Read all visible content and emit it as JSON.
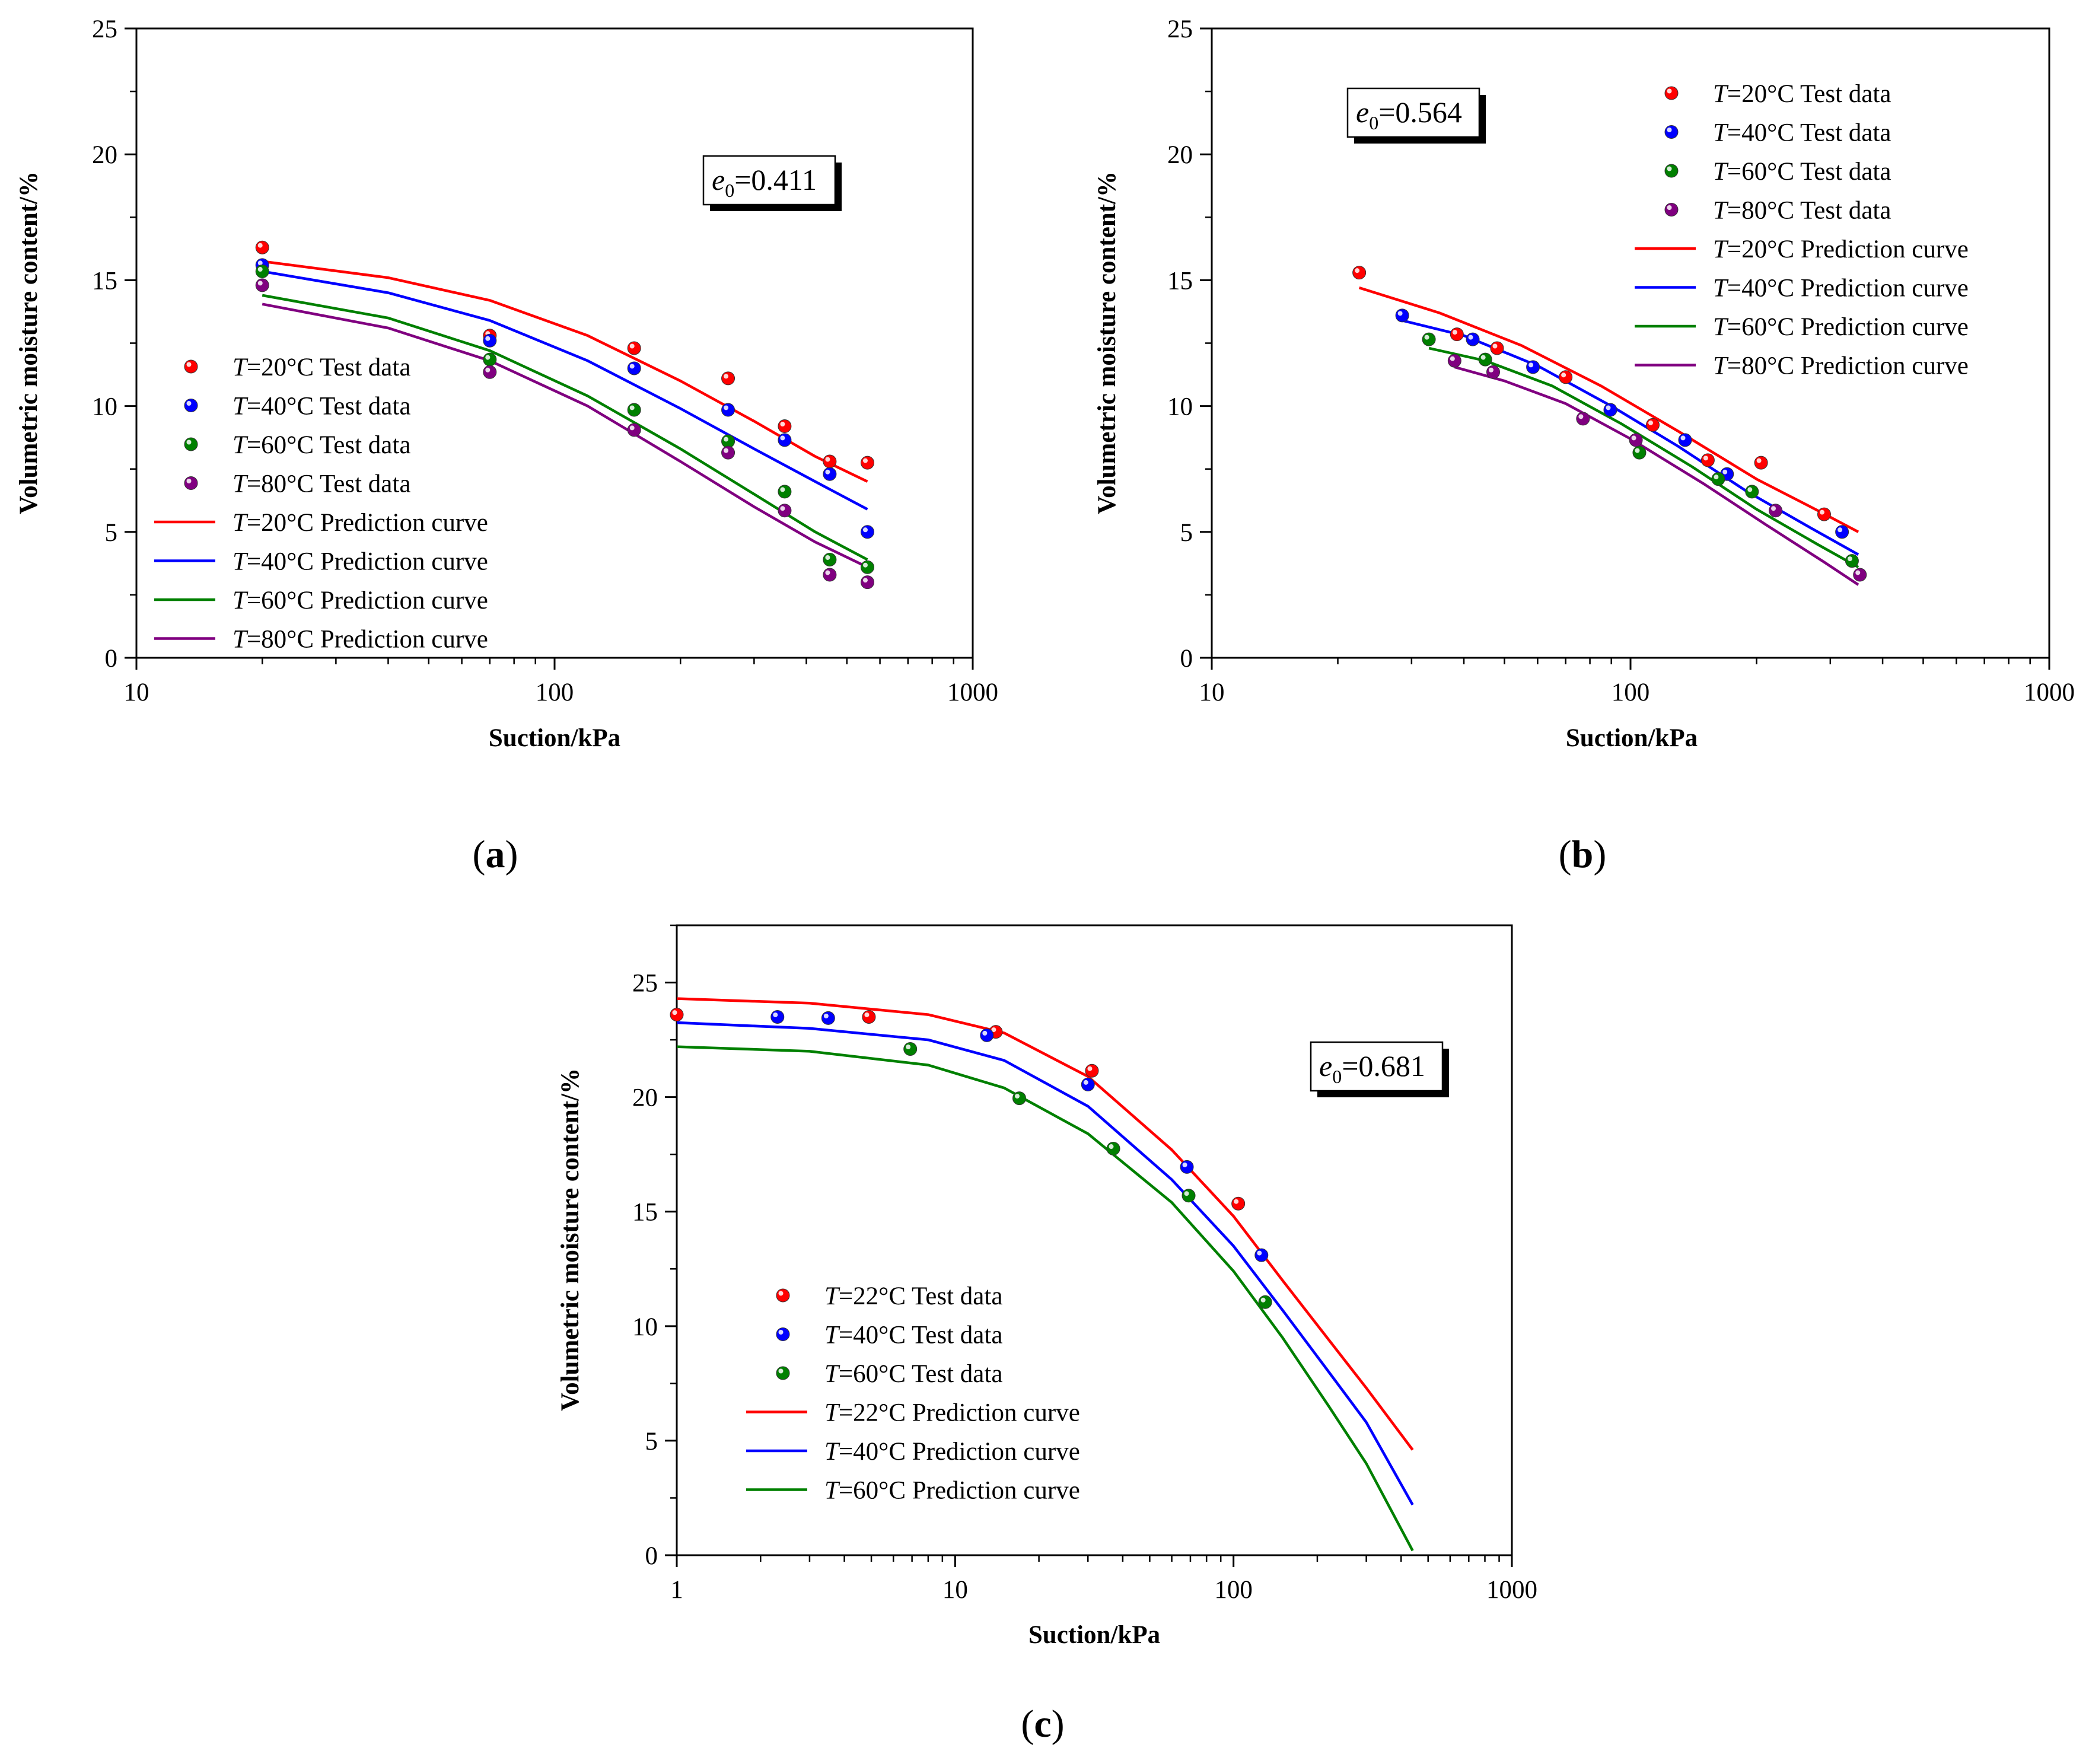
{
  "figure": {
    "panels": [
      {
        "letter": "a",
        "open": "(",
        "close": ")"
      },
      {
        "letter": "b",
        "open": "(",
        "close": ")"
      },
      {
        "letter": "c",
        "open": "(",
        "close": ")"
      }
    ],
    "legend_var": "T",
    "annotation_var": "e",
    "annotation_sub": "0",
    "annotation_eq": "="
  },
  "chart_data": [
    {
      "type": "scatter",
      "panel": "a",
      "x_scale": "log",
      "xlim": [
        10,
        1000
      ],
      "ylim": [
        0,
        25
      ],
      "xlabel": "Suction/kPa",
      "ylabel": "Volumetric moisture content/%",
      "x_ticks": [
        "10",
        "100",
        "1000"
      ],
      "y_ticks": [
        "0",
        "5",
        "10",
        "15",
        "20",
        "25"
      ],
      "annotation_value": "0.411",
      "annotation_position": "top-right",
      "legend_position": "middle-left",
      "series": [
        {
          "name": "=20°C Test data",
          "kind": "points",
          "color": "#ff0000",
          "x": [
            20,
            70,
            155,
            260,
            355,
            455,
            560
          ],
          "y": [
            16.3,
            12.8,
            12.3,
            11.1,
            9.2,
            7.8,
            7.75
          ]
        },
        {
          "name": "=40°C Test data",
          "kind": "points",
          "color": "#0000ff",
          "x": [
            20,
            70,
            155,
            260,
            355,
            455,
            560
          ],
          "y": [
            15.6,
            12.6,
            11.5,
            9.85,
            8.65,
            7.3,
            5.0
          ]
        },
        {
          "name": "=60°C Test data",
          "kind": "points",
          "color": "#008000",
          "x": [
            20,
            70,
            155,
            260,
            355,
            455,
            560
          ],
          "y": [
            15.35,
            11.85,
            9.85,
            8.6,
            6.6,
            3.9,
            3.6
          ]
        },
        {
          "name": "=80°C Test data",
          "kind": "points",
          "color": "#800080",
          "x": [
            20,
            70,
            155,
            260,
            355,
            455,
            560
          ],
          "y": [
            14.8,
            11.35,
            9.05,
            8.15,
            5.85,
            3.3,
            3.0
          ]
        },
        {
          "name": "=20°C Prediction curve",
          "kind": "line",
          "color": "#ff0000",
          "x": [
            20,
            40,
            70,
            120,
            200,
            300,
            420,
            560
          ],
          "y": [
            15.75,
            15.1,
            14.2,
            12.8,
            11.0,
            9.4,
            8.0,
            7.0
          ]
        },
        {
          "name": "=40°C Prediction curve",
          "kind": "line",
          "color": "#0000ff",
          "x": [
            20,
            40,
            70,
            120,
            200,
            300,
            420,
            560
          ],
          "y": [
            15.35,
            14.5,
            13.4,
            11.8,
            9.9,
            8.3,
            7.0,
            5.9
          ]
        },
        {
          "name": "=60°C Prediction curve",
          "kind": "line",
          "color": "#008000",
          "x": [
            20,
            40,
            70,
            120,
            200,
            300,
            420,
            560
          ],
          "y": [
            14.4,
            13.5,
            12.2,
            10.4,
            8.3,
            6.5,
            5.0,
            3.9
          ]
        },
        {
          "name": "=80°C Prediction curve",
          "kind": "line",
          "color": "#800080",
          "x": [
            20,
            40,
            70,
            120,
            200,
            300,
            420,
            560
          ],
          "y": [
            14.05,
            13.1,
            11.8,
            10.0,
            7.8,
            6.0,
            4.6,
            3.6
          ]
        }
      ]
    },
    {
      "type": "scatter",
      "panel": "b",
      "x_scale": "log",
      "xlim": [
        10,
        1000
      ],
      "ylim": [
        0,
        25
      ],
      "xlabel": "Suction/kPa",
      "ylabel": "Volumetric moisture content/%",
      "x_ticks": [
        "10",
        "100",
        "1000"
      ],
      "y_ticks": [
        "0",
        "5",
        "10",
        "15",
        "20",
        "25"
      ],
      "annotation_value": "0.564",
      "annotation_position": "top-left",
      "legend_position": "top-right",
      "series": [
        {
          "name": "=20°C Test data",
          "kind": "points",
          "color": "#ff0000",
          "x": [
            22.5,
            38.5,
            48,
            70,
            113,
            153,
            205,
            290
          ],
          "y": [
            15.3,
            12.85,
            12.3,
            11.15,
            9.25,
            7.85,
            7.75,
            5.7
          ]
        },
        {
          "name": "=40°C Test data",
          "kind": "points",
          "color": "#0000ff",
          "x": [
            28.5,
            42,
            58.5,
            89.5,
            135,
            170,
            320
          ],
          "y": [
            13.6,
            12.65,
            11.55,
            9.85,
            8.65,
            7.3,
            5.0
          ]
        },
        {
          "name": "=60°C Test data",
          "kind": "points",
          "color": "#008000",
          "x": [
            33,
            45,
            105,
            162,
            195,
            338
          ],
          "y": [
            12.65,
            11.85,
            8.15,
            7.1,
            6.6,
            3.85
          ]
        },
        {
          "name": "=80°C Test data",
          "kind": "points",
          "color": "#800080",
          "x": [
            38,
            47,
            77,
            103,
            222,
            353
          ],
          "y": [
            11.8,
            11.35,
            9.5,
            8.65,
            5.85,
            3.3
          ]
        },
        {
          "name": "=20°C Prediction curve",
          "kind": "line",
          "color": "#ff0000",
          "x": [
            22.5,
            35,
            55,
            85,
            130,
            200,
            280,
            350
          ],
          "y": [
            14.7,
            13.7,
            12.4,
            10.8,
            9.0,
            7.1,
            5.85,
            5.0
          ]
        },
        {
          "name": "=40°C Prediction curve",
          "kind": "line",
          "color": "#0000ff",
          "x": [
            28.5,
            40,
            60,
            90,
            130,
            190,
            270,
            350
          ],
          "y": [
            13.4,
            12.8,
            11.6,
            10.0,
            8.4,
            6.6,
            5.15,
            4.1
          ]
        },
        {
          "name": "=60°C Prediction curve",
          "kind": "line",
          "color": "#008000",
          "x": [
            33,
            45,
            65,
            95,
            140,
            200,
            280,
            350
          ],
          "y": [
            12.3,
            11.8,
            10.8,
            9.3,
            7.6,
            5.9,
            4.5,
            3.6
          ]
        },
        {
          "name": "=80°C Prediction curve",
          "kind": "line",
          "color": "#800080",
          "x": [
            38,
            50,
            70,
            100,
            150,
            210,
            290,
            350
          ],
          "y": [
            11.55,
            11.0,
            10.1,
            8.7,
            6.9,
            5.3,
            3.8,
            2.9
          ]
        }
      ]
    },
    {
      "type": "scatter",
      "panel": "c",
      "x_scale": "log",
      "xlim": [
        1,
        1000
      ],
      "ylim": [
        0,
        27.5
      ],
      "xlabel": "Suction/kPa",
      "ylabel": "Volumetric moisture content/%",
      "x_ticks": [
        "1",
        "10",
        "100",
        "1000"
      ],
      "y_ticks": [
        "0",
        "5",
        "10",
        "15",
        "20",
        "25"
      ],
      "annotation_value": "0.681",
      "annotation_position": "top-right",
      "legend_position": "bottom-left",
      "series": [
        {
          "name": "=22°C Test data",
          "kind": "points",
          "color": "#ff0000",
          "x": [
            1.0,
            4.9,
            14,
            31,
            104
          ],
          "y": [
            23.6,
            23.5,
            22.85,
            21.15,
            15.35
          ]
        },
        {
          "name": "=40°C Test data",
          "kind": "points",
          "color": "#0000ff",
          "x": [
            2.3,
            3.5,
            13,
            30,
            68,
            126
          ],
          "y": [
            23.5,
            23.45,
            22.7,
            20.55,
            16.95,
            13.1
          ]
        },
        {
          "name": "=60°C Test data",
          "kind": "points",
          "color": "#008000",
          "x": [
            6.9,
            17,
            37,
            69,
            130
          ],
          "y": [
            22.1,
            19.95,
            17.75,
            15.7,
            11.05
          ]
        },
        {
          "name": "=22°C Prediction curve",
          "kind": "line",
          "color": "#ff0000",
          "x": [
            1,
            3,
            8,
            15,
            30,
            60,
            100,
            150,
            220,
            300,
            440
          ],
          "y": [
            24.3,
            24.1,
            23.6,
            22.8,
            20.9,
            17.7,
            14.8,
            12.0,
            9.4,
            7.3,
            4.6
          ]
        },
        {
          "name": "=40°C Prediction curve",
          "kind": "line",
          "color": "#0000ff",
          "x": [
            1,
            3,
            8,
            15,
            30,
            60,
            100,
            150,
            220,
            300,
            440
          ],
          "y": [
            23.25,
            23.0,
            22.5,
            21.6,
            19.6,
            16.4,
            13.5,
            10.7,
            8.0,
            5.8,
            2.2
          ]
        },
        {
          "name": "=60°C Prediction curve",
          "kind": "line",
          "color": "#008000",
          "x": [
            1,
            3,
            8,
            15,
            30,
            60,
            100,
            150,
            220,
            300,
            440
          ],
          "y": [
            22.2,
            22.0,
            21.4,
            20.4,
            18.4,
            15.4,
            12.4,
            9.5,
            6.5,
            4.0,
            0.2
          ]
        }
      ]
    }
  ]
}
